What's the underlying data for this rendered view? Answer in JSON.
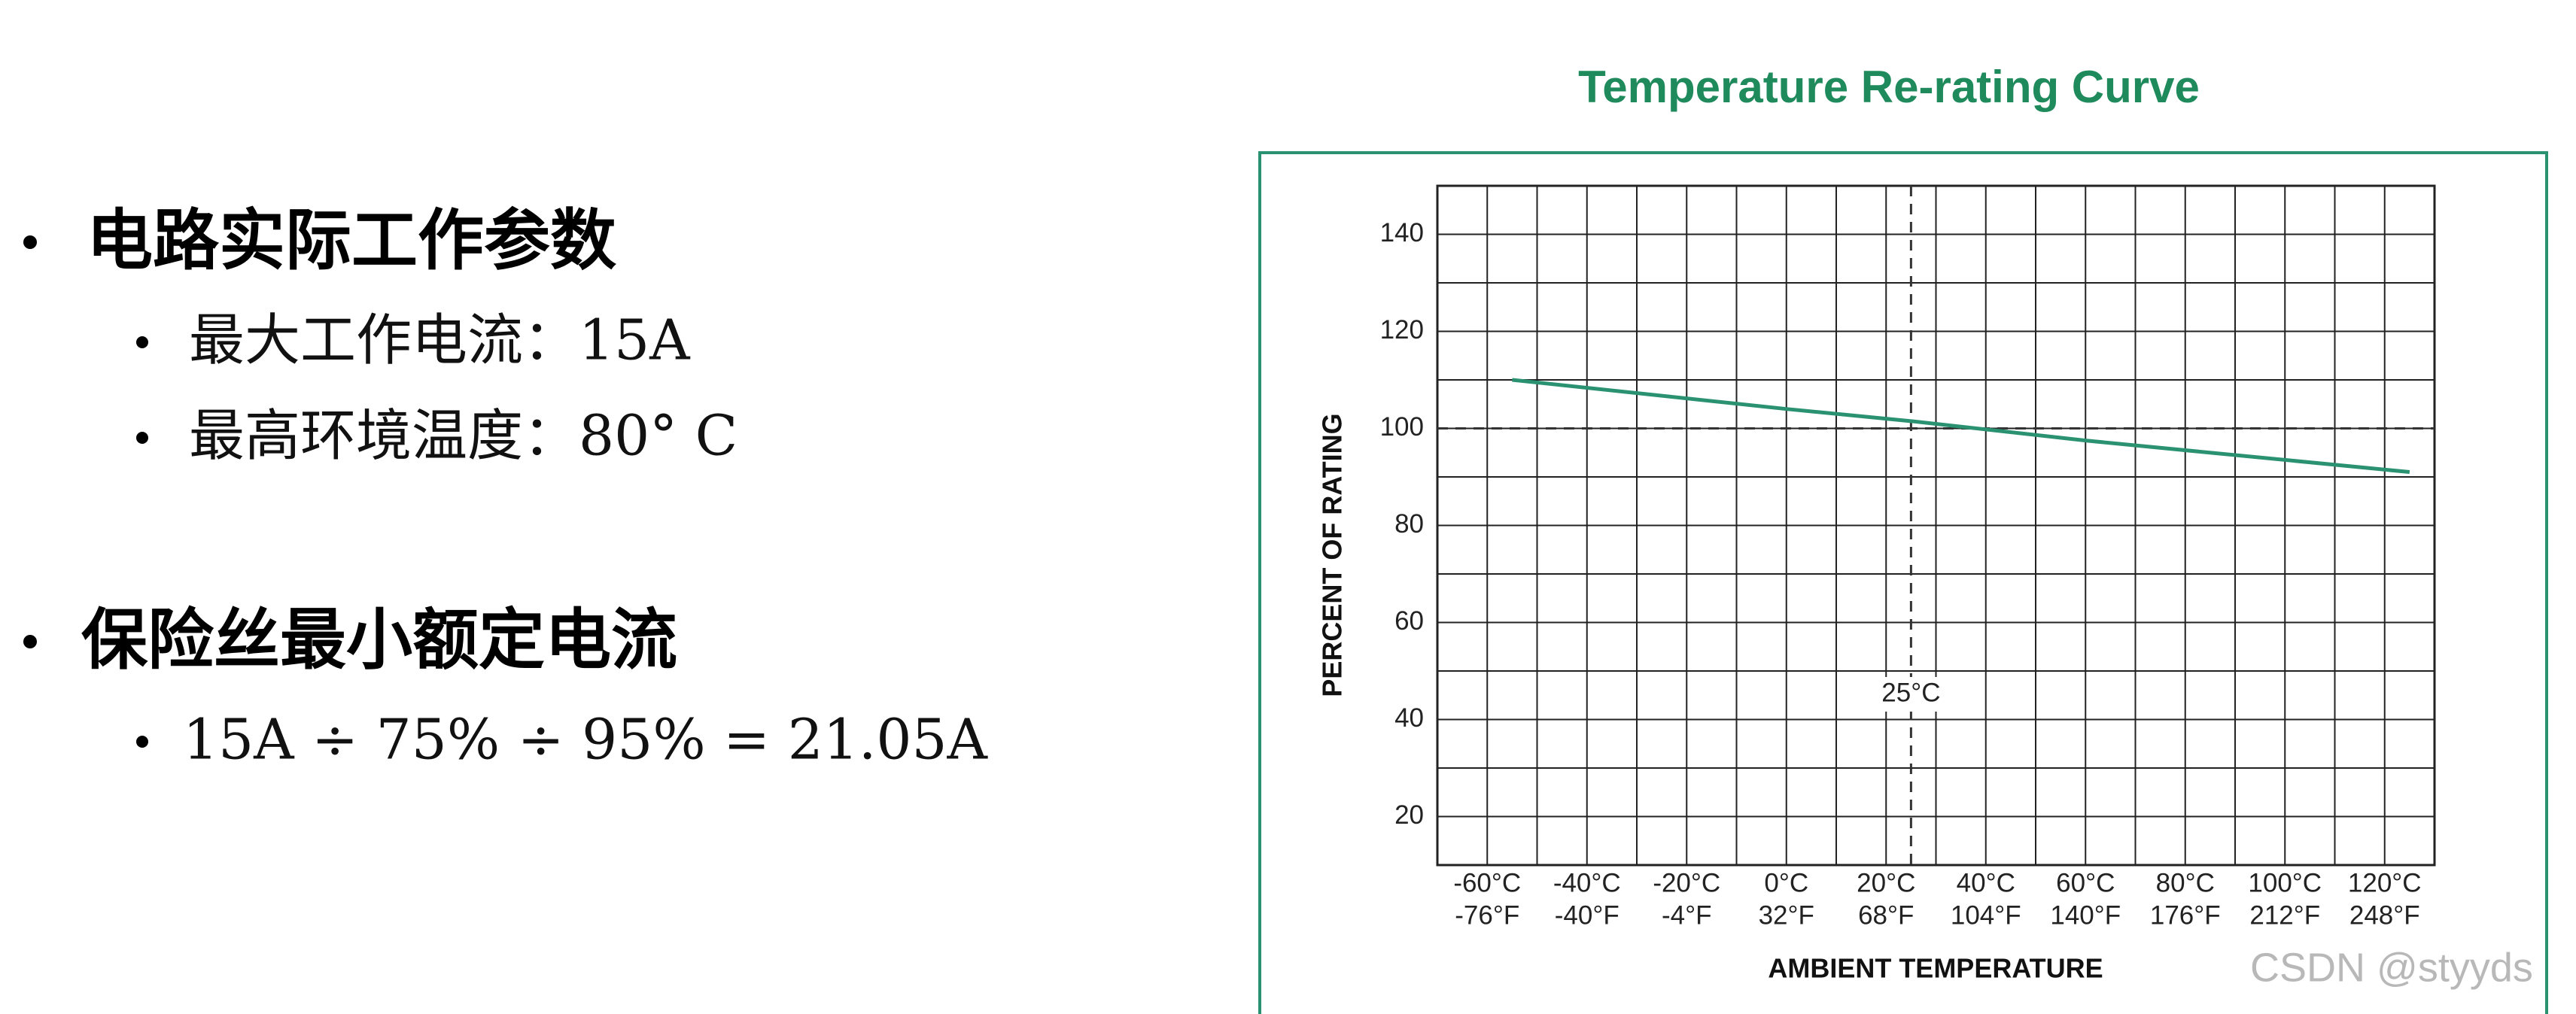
{
  "slide": {
    "sections": [
      {
        "heading": "电路实际工作参数",
        "items": [
          "最大工作电流：15A",
          "最高环境温度：80° C"
        ]
      },
      {
        "heading": "保险丝最小额定电流",
        "items": [
          "15A ÷ 75% ÷ 95% = 21.05A"
        ]
      }
    ]
  },
  "chart_data": {
    "type": "line",
    "title": "Temperature Re-rating Curve",
    "xlabel": "AMBIENT TEMPERATURE",
    "ylabel": "PERCENT OF RATING",
    "x": [
      -55,
      0,
      25,
      60,
      125
    ],
    "series": [
      {
        "color": "#2a9270",
        "values": [
          110,
          104,
          101.5,
          97.5,
          91
        ]
      }
    ],
    "xlim": [
      -70,
      130
    ],
    "ylim": [
      10,
      150
    ],
    "xticks": [
      {
        "value": -60,
        "label": "-60°C"
      },
      {
        "value": -40,
        "label": "-40°C"
      },
      {
        "value": -20,
        "label": "-20°C"
      },
      {
        "value": 0,
        "label": "0°C"
      },
      {
        "value": 20,
        "label": "20°C"
      },
      {
        "value": 40,
        "label": "40°C"
      },
      {
        "value": 60,
        "label": "60°C"
      },
      {
        "value": 80,
        "label": "80°C"
      },
      {
        "value": 100,
        "label": "100°C"
      },
      {
        "value": 120,
        "label": "120°C"
      }
    ],
    "xtick_sublabels": [
      "-76°F",
      "-40°F",
      "-4°F",
      "32°F",
      "68°F",
      "104°F",
      "140°F",
      "176°F",
      "212°F",
      "248°F"
    ],
    "yticks": [
      20,
      40,
      60,
      80,
      100,
      120,
      140
    ],
    "minor_xticks": [
      -50,
      -30,
      -10,
      10,
      30,
      50,
      70,
      90,
      110
    ],
    "minor_yticks": [
      30,
      50,
      70,
      90,
      110,
      130
    ],
    "grid": true,
    "reference_lines": [
      {
        "axis": "x",
        "value": 25,
        "label": "25°C"
      },
      {
        "axis": "y",
        "value": 100
      }
    ]
  },
  "watermark": "CSDN @styyds"
}
